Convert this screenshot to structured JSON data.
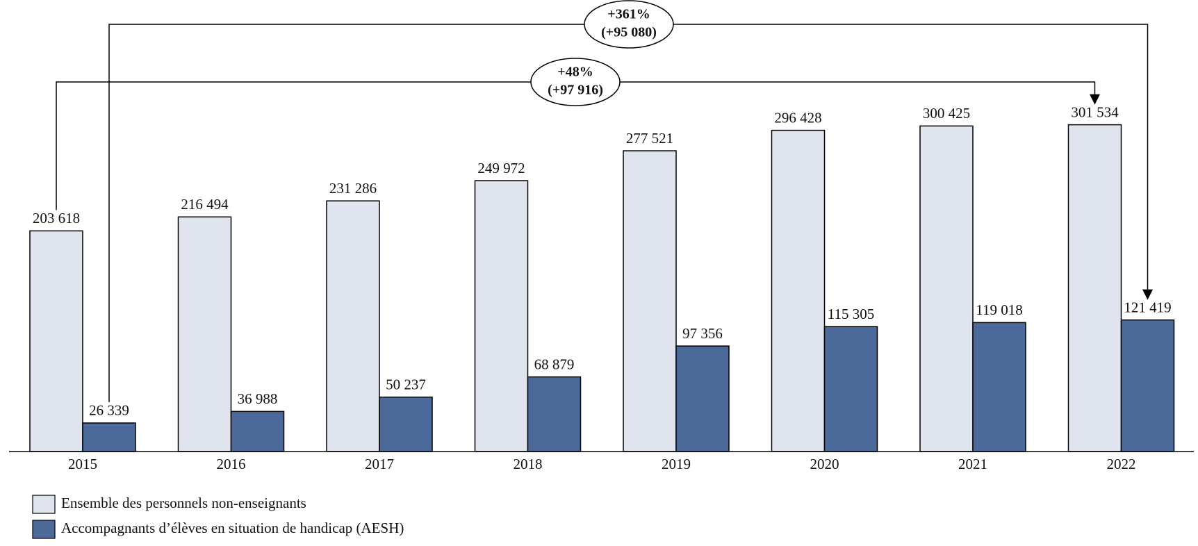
{
  "chart_data": {
    "type": "bar",
    "categories": [
      "2015",
      "2016",
      "2017",
      "2018",
      "2019",
      "2020",
      "2021",
      "2022"
    ],
    "series": [
      {
        "name": "Ensemble des personnels non-enseignants",
        "color": "#dfe4ee",
        "values": [
          203618,
          216494,
          231286,
          249972,
          277521,
          296428,
          300425,
          301534
        ],
        "value_labels": [
          "203 618",
          "216 494",
          "231 286",
          "249 972",
          "277 521",
          "296 428",
          "300 425",
          "301 534"
        ]
      },
      {
        "name": "Accompagnants d’élèves en situation de handicap (AESH)",
        "color": "#4b6a9a",
        "values": [
          26339,
          36988,
          50237,
          68879,
          97356,
          115305,
          119018,
          121419
        ],
        "value_labels": [
          "26 339",
          "36 988",
          "50 237",
          "68 879",
          "97 356",
          "115 305",
          "119 018",
          "121 419"
        ]
      }
    ],
    "ylim": [
      0,
      350000
    ],
    "annotations": [
      {
        "text": "+361%",
        "subtext": "(+95 080)"
      },
      {
        "text": "+48%",
        "subtext": "(+97 916)"
      }
    ]
  }
}
